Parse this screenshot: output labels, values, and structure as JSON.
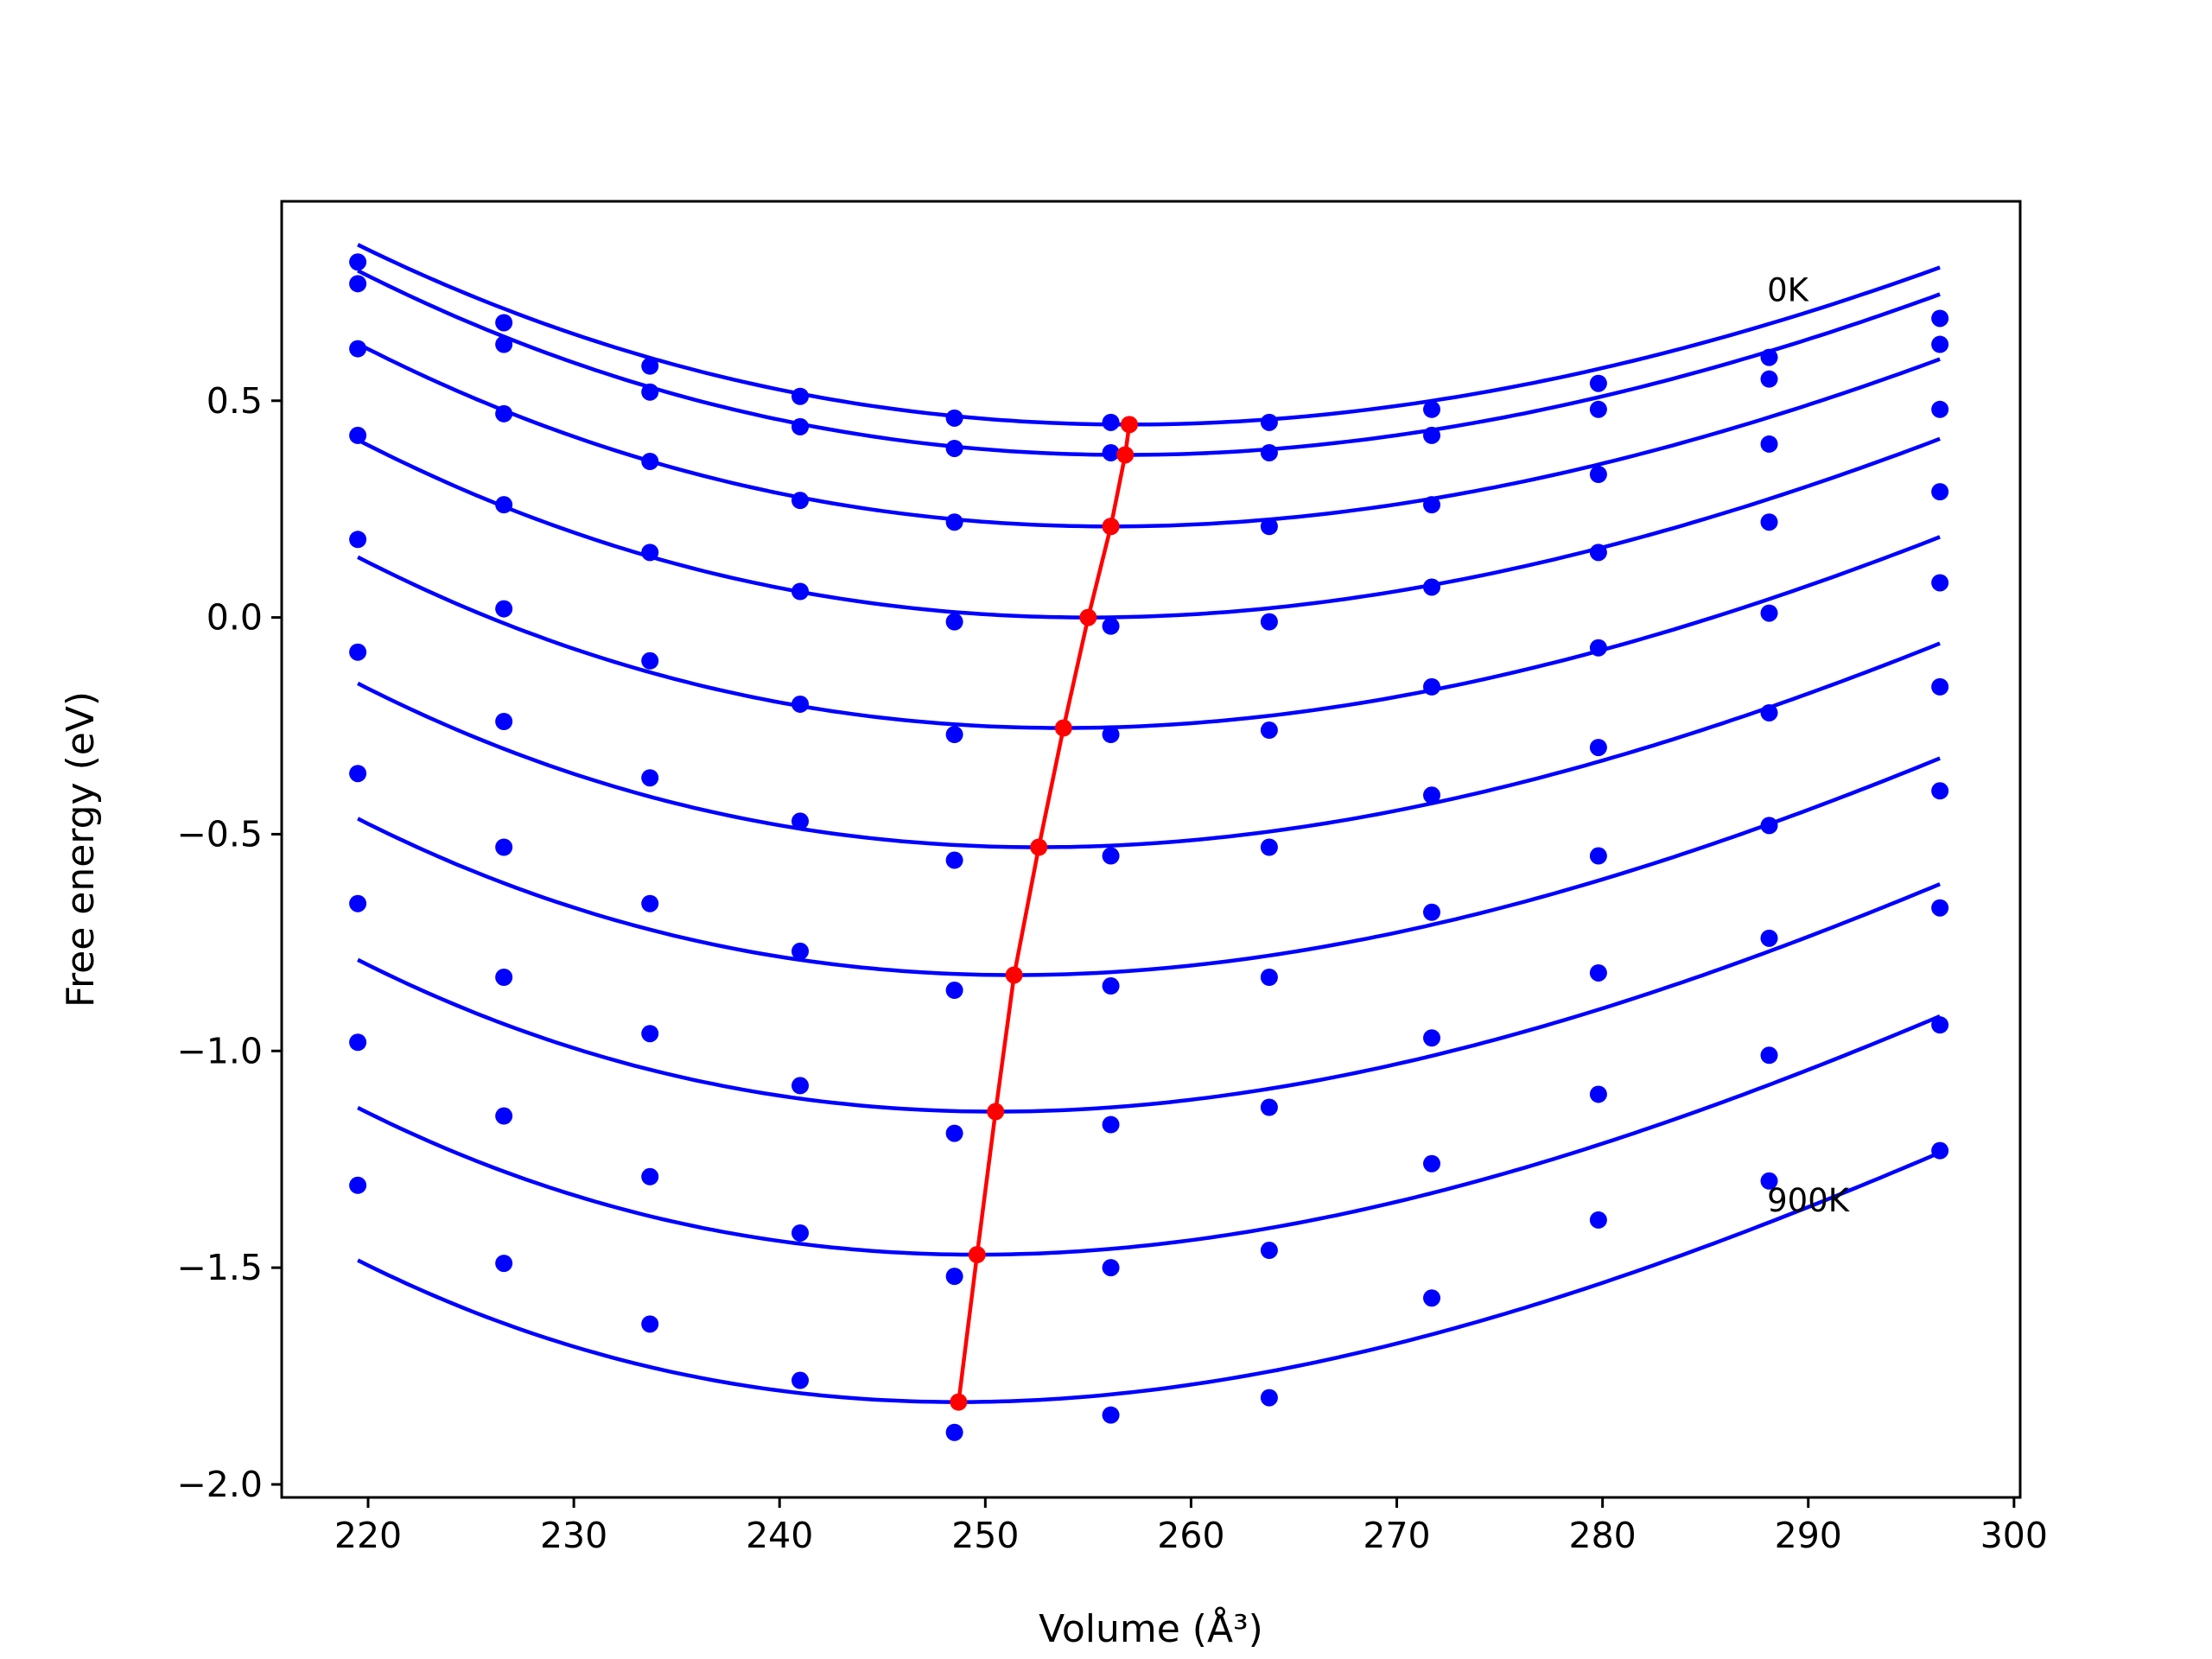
{
  "chart_data": {
    "type": "line",
    "xlabel": "Volume (Å³)",
    "ylabel": "Free energy (eV)",
    "xlim": [
      215.8,
      300.3
    ],
    "ylim": [
      -2.03,
      0.96
    ],
    "x_ticks": [
      220,
      230,
      240,
      250,
      260,
      270,
      280,
      290,
      300
    ],
    "y_ticks": [
      0.5,
      0.0,
      -0.5,
      -1.0,
      -1.5,
      -2.0
    ],
    "x_tick_labels": [
      "220",
      "230",
      "240",
      "250",
      "260",
      "270",
      "280",
      "290",
      "300"
    ],
    "y_tick_labels": [
      "0.5",
      "0.0",
      "−0.5",
      "−1.0",
      "−1.5",
      "−2.0"
    ],
    "grid": false,
    "annotations": [
      {
        "text": "0K",
        "x": 288.0,
        "y": 0.73
      },
      {
        "text": "900K",
        "x": 288.0,
        "y": -1.37
      }
    ],
    "volumes": [
      219.5,
      226.6,
      233.7,
      241.0,
      248.5,
      256.1,
      263.8,
      271.7,
      279.8,
      288.1,
      296.4
    ],
    "series": [
      {
        "values": [
          0.82,
          0.68,
          0.58,
          0.51,
          0.46,
          0.45,
          0.45,
          0.48,
          0.54,
          0.6,
          0.69
        ],
        "fit": {
          "x_min": 219.5,
          "x_max": 296.4,
          "v0": 257.0,
          "e0": 0.445,
          "a": 0.000265,
          "b": -8e-07
        }
      },
      {
        "values": [
          0.77,
          0.63,
          0.52,
          0.44,
          0.39,
          0.38,
          0.38,
          0.42,
          0.48,
          0.55,
          0.63
        ],
        "fit": {
          "x_min": 219.5,
          "x_max": 296.4,
          "v0": 256.8,
          "e0": 0.375,
          "a": 0.000272,
          "b": -9e-07
        }
      },
      {
        "values": [
          0.62,
          0.47,
          0.36,
          0.27,
          0.22,
          0.21,
          0.21,
          0.26,
          0.33,
          0.4,
          0.48
        ],
        "fit": {
          "x_min": 219.5,
          "x_max": 296.4,
          "v0": 256.1,
          "e0": 0.21,
          "a": 0.000278,
          "b": -1e-06
        }
      },
      {
        "values": [
          0.42,
          0.26,
          0.15,
          0.06,
          -0.01,
          -0.02,
          -0.01,
          0.07,
          0.15,
          0.22,
          0.29
        ],
        "fit": {
          "x_min": 219.5,
          "x_max": 296.4,
          "v0": 255.0,
          "e0": 0.0,
          "a": 0.000286,
          "b": -1.1e-06
        }
      },
      {
        "values": [
          0.18,
          0.02,
          -0.1,
          -0.2,
          -0.27,
          -0.27,
          -0.26,
          -0.16,
          -0.07,
          0.01,
          0.08
        ],
        "fit": {
          "x_min": 219.5,
          "x_max": 296.4,
          "v0": 253.8,
          "e0": -0.255,
          "a": 0.000294,
          "b": -1.2e-06
        }
      },
      {
        "values": [
          -0.08,
          -0.24,
          -0.37,
          -0.47,
          -0.56,
          -0.55,
          -0.53,
          -0.41,
          -0.3,
          -0.22,
          -0.16
        ],
        "fit": {
          "x_min": 219.5,
          "x_max": 296.4,
          "v0": 252.6,
          "e0": -0.53,
          "a": 0.000302,
          "b": -1.3e-06
        }
      },
      {
        "values": [
          -0.36,
          -0.53,
          -0.66,
          -0.77,
          -0.86,
          -0.85,
          -0.83,
          -0.68,
          -0.55,
          -0.48,
          -0.4
        ],
        "fit": {
          "x_min": 219.5,
          "x_max": 296.4,
          "v0": 251.4,
          "e0": -0.825,
          "a": 0.00031,
          "b": -1.4e-06
        }
      },
      {
        "values": [
          -0.66,
          -0.83,
          -0.96,
          -1.08,
          -1.19,
          -1.17,
          -1.13,
          -0.97,
          -0.82,
          -0.74,
          -0.67
        ],
        "fit": {
          "x_min": 219.5,
          "x_max": 296.4,
          "v0": 250.5,
          "e0": -1.14,
          "a": 0.000318,
          "b": -1.5e-06
        }
      },
      {
        "values": [
          -0.98,
          -1.15,
          -1.29,
          -1.42,
          -1.52,
          -1.5,
          -1.46,
          -1.26,
          -1.1,
          -1.01,
          -0.94
        ],
        "fit": {
          "x_min": 219.5,
          "x_max": 296.4,
          "v0": 249.6,
          "e0": -1.47,
          "a": 0.000326,
          "b": -1.6e-06
        }
      },
      {
        "values": [
          -1.31,
          -1.49,
          -1.63,
          -1.76,
          -1.88,
          -1.84,
          -1.8,
          -1.57,
          -1.39,
          -1.3,
          -1.23
        ],
        "fit": {
          "x_min": 219.5,
          "x_max": 296.4,
          "v0": 248.7,
          "e0": -1.81,
          "a": 0.000334,
          "b": -1.7e-06
        }
      }
    ],
    "minima": {
      "x": [
        257.0,
        256.8,
        256.1,
        255.0,
        253.8,
        252.6,
        251.4,
        250.5,
        249.6,
        248.7
      ],
      "y": [
        0.445,
        0.375,
        0.21,
        0.0,
        -0.255,
        -0.53,
        -0.825,
        -1.14,
        -1.47,
        -1.81
      ]
    },
    "colors": {
      "series": "#0000ff",
      "minima": "#ff0000",
      "axes": "#000000"
    }
  }
}
